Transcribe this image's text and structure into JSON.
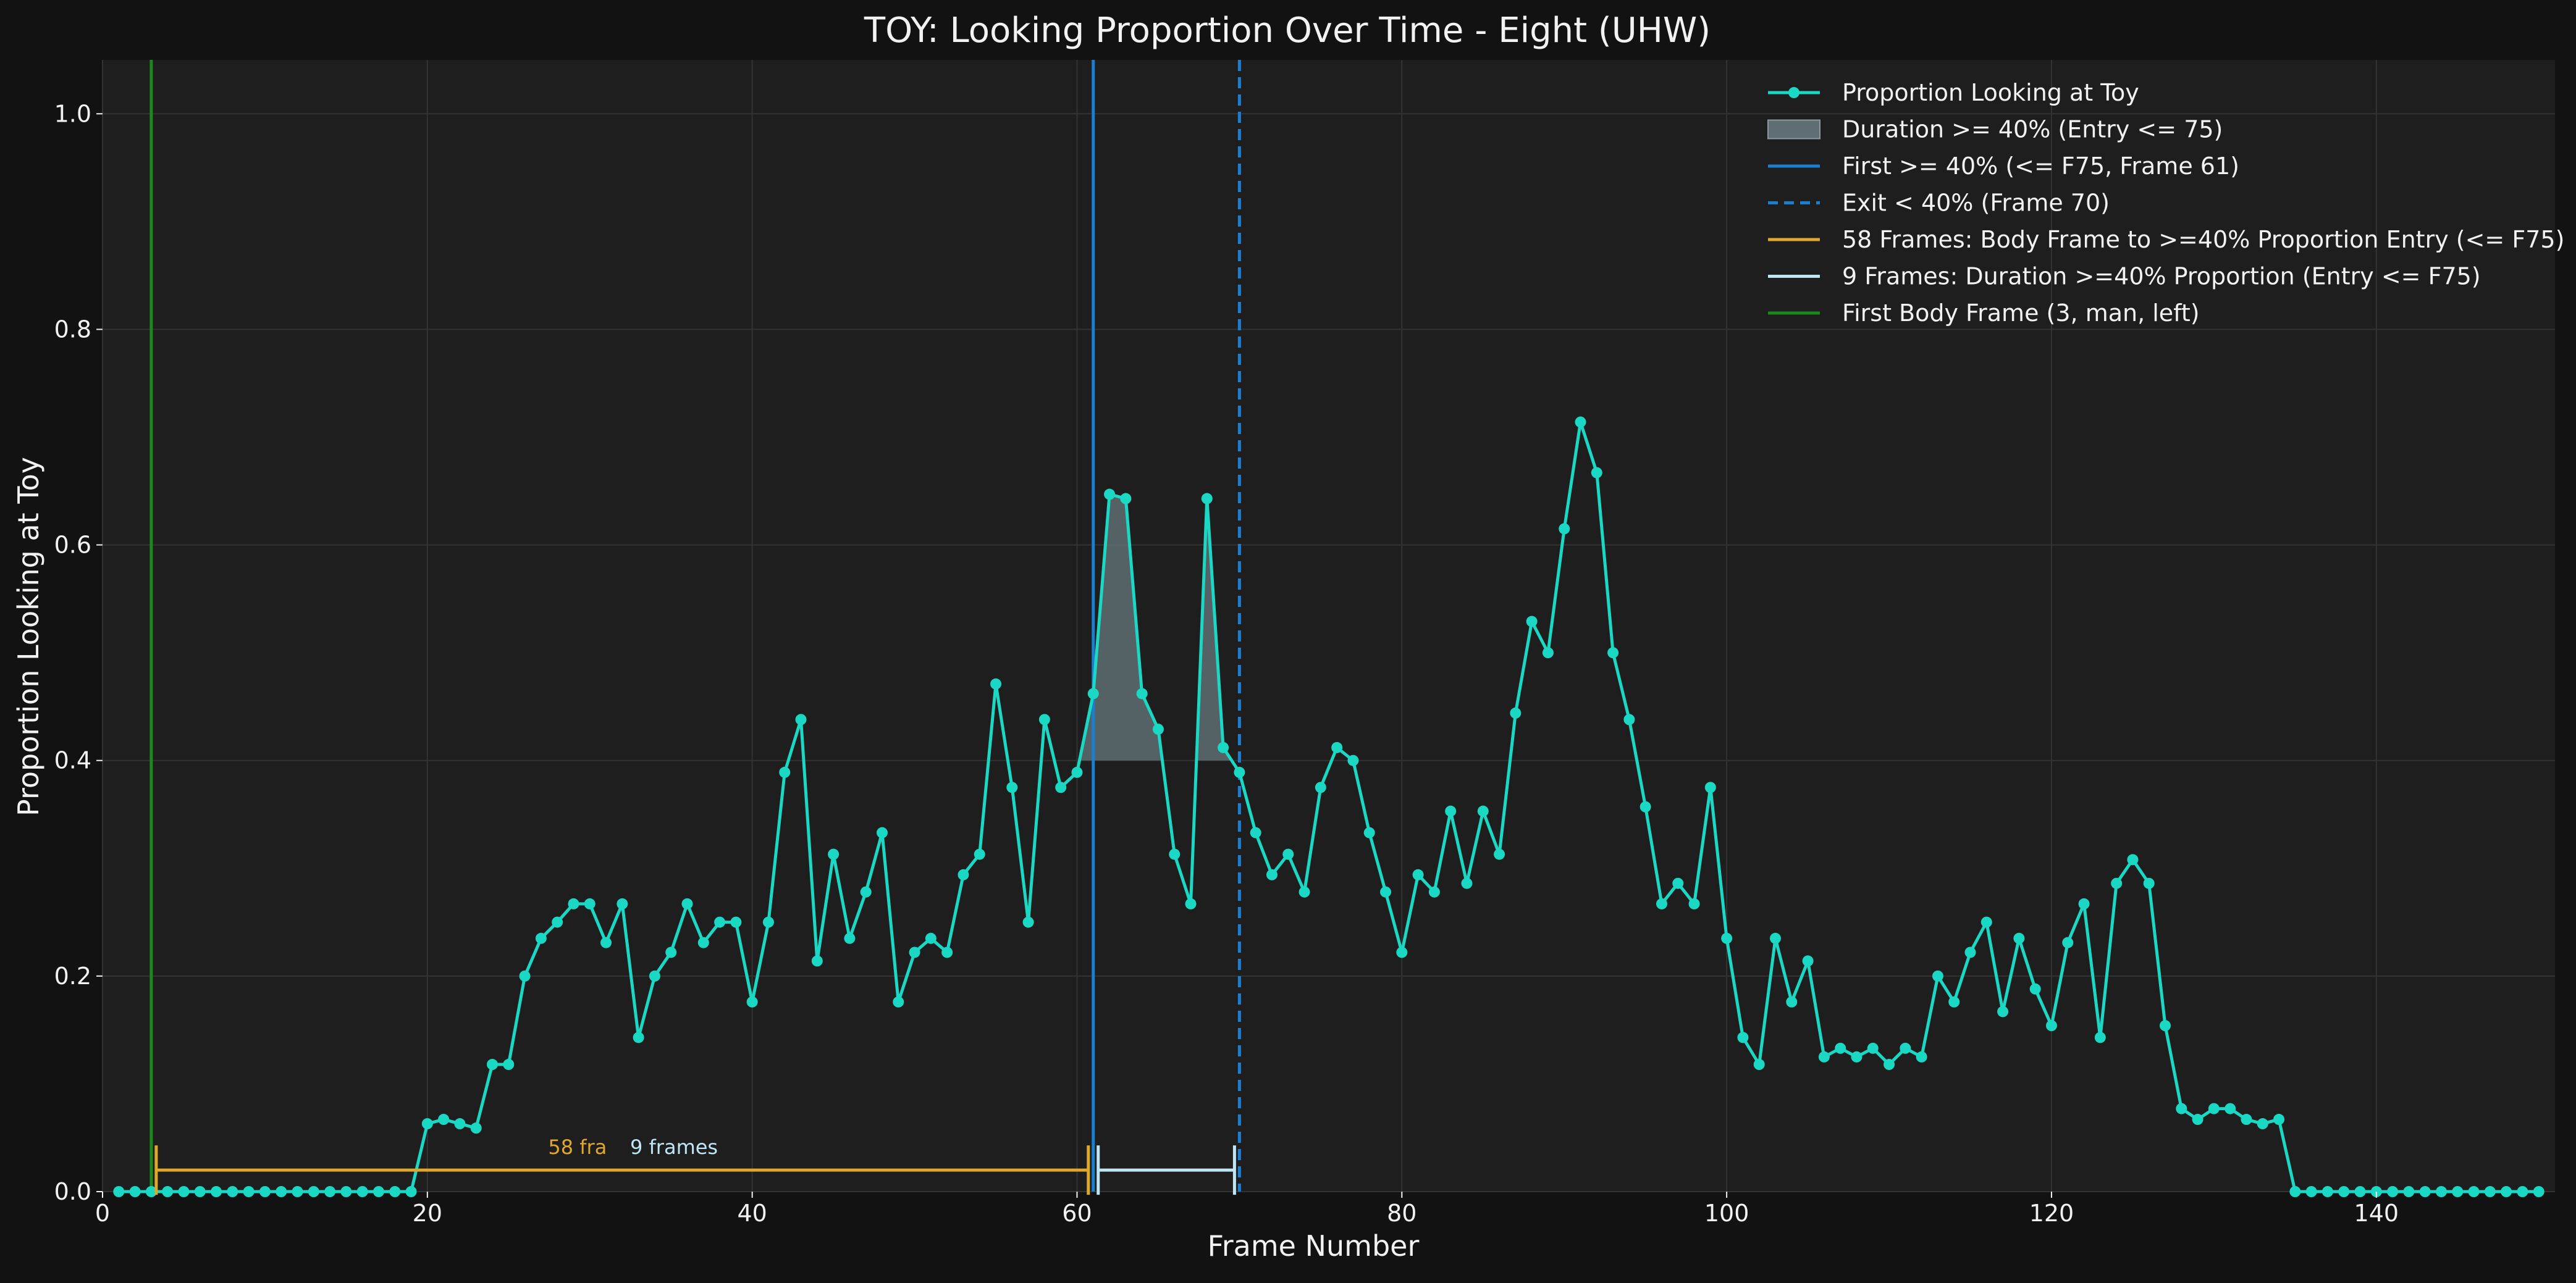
{
  "chart_data": {
    "type": "line",
    "title": "TOY: Looking Proportion Over Time - Eight (UHW)",
    "xlabel": "Frame Number",
    "ylabel": "Proportion Looking at Toy",
    "xlim": [
      0,
      151
    ],
    "ylim": [
      0,
      1.05
    ],
    "xticks": [
      0,
      20,
      40,
      60,
      80,
      100,
      120,
      140
    ],
    "yticks": [
      0.0,
      0.2,
      0.4,
      0.6,
      0.8,
      1.0
    ],
    "xtick_labels": [
      "0",
      "20",
      "40",
      "60",
      "80",
      "100",
      "120",
      "140"
    ],
    "ytick_labels": [
      "0.0",
      "0.2",
      "0.4",
      "0.6",
      "0.8",
      "1.0"
    ],
    "grid": true,
    "legend_position": "top-right",
    "threshold": 0.4,
    "series": [
      {
        "name": "Proportion Looking at Toy",
        "color": "#1ad8c4",
        "x": [
          1,
          2,
          3,
          4,
          5,
          6,
          7,
          8,
          9,
          10,
          11,
          12,
          13,
          14,
          15,
          16,
          17,
          18,
          19,
          20,
          21,
          22,
          23,
          24,
          25,
          26,
          27,
          28,
          29,
          30,
          31,
          32,
          33,
          34,
          35,
          36,
          37,
          38,
          39,
          40,
          41,
          42,
          43,
          44,
          45,
          46,
          47,
          48,
          49,
          50,
          51,
          52,
          53,
          54,
          55,
          56,
          57,
          58,
          59,
          60,
          61,
          62,
          63,
          64,
          65,
          66,
          67,
          68,
          69,
          70,
          71,
          72,
          73,
          74,
          75,
          76,
          77,
          78,
          79,
          80,
          81,
          82,
          83,
          84,
          85,
          86,
          87,
          88,
          89,
          90,
          91,
          92,
          93,
          94,
          95,
          96,
          97,
          98,
          99,
          100,
          101,
          102,
          103,
          104,
          105,
          106,
          107,
          108,
          109,
          110,
          111,
          112,
          113,
          114,
          115,
          116,
          117,
          118,
          119,
          120,
          121,
          122,
          123,
          124,
          125,
          126,
          127,
          128,
          129,
          130,
          131,
          132,
          133,
          134,
          135,
          136,
          137,
          138,
          139,
          140,
          141,
          142,
          143,
          144,
          145,
          146,
          147,
          148,
          149,
          150
        ],
        "y": [
          0,
          0,
          0,
          0,
          0,
          0,
          0,
          0,
          0,
          0,
          0,
          0,
          0,
          0,
          0,
          0,
          0,
          0,
          0,
          0.063,
          0.067,
          0.063,
          0.059,
          0.118,
          0.118,
          0.2,
          0.235,
          0.25,
          0.267,
          0.267,
          0.231,
          0.267,
          0.143,
          0.2,
          0.222,
          0.267,
          0.231,
          0.25,
          0.25,
          0.176,
          0.25,
          0.389,
          0.438,
          0.214,
          0.313,
          0.235,
          0.278,
          0.333,
          0.176,
          0.222,
          0.235,
          0.222,
          0.294,
          0.313,
          0.471,
          0.375,
          0.25,
          0.438,
          0.375,
          0.389,
          0.462,
          0.647,
          0.643,
          0.462,
          0.429,
          0.313,
          0.267,
          0.643,
          0.412,
          0.389,
          0.333,
          0.294,
          0.313,
          0.278,
          0.375,
          0.412,
          0.4,
          0.333,
          0.278,
          0.222,
          0.294,
          0.278,
          0.353,
          0.286,
          0.353,
          0.313,
          0.444,
          0.529,
          0.5,
          0.615,
          0.714,
          0.667,
          0.5,
          0.438,
          0.357,
          0.267,
          0.286,
          0.267,
          0.375,
          0.235,
          0.143,
          0.118,
          0.235,
          0.176,
          0.214,
          0.125,
          0.133,
          0.125,
          0.133,
          0.118,
          0.133,
          0.125,
          0.2,
          0.176,
          0.222,
          0.25,
          0.167,
          0.235,
          0.188,
          0.154,
          0.231,
          0.267,
          0.143,
          0.286,
          0.308,
          0.286,
          0.154,
          0.077,
          0.067,
          0.077,
          0.077,
          0.067,
          0.063,
          0.067,
          0,
          0,
          0,
          0,
          0,
          0,
          0,
          0,
          0,
          0,
          0,
          0,
          0,
          0,
          0,
          0
        ]
      }
    ],
    "shaded_region": {
      "label": "Duration >= 40% (Entry <= 75)",
      "x_from": 60,
      "x_to": 70,
      "y_base": 0.4
    },
    "vertical_lines": [
      {
        "label": "First >= 40% (<= F75, Frame 61)",
        "x": 61,
        "style": "solid",
        "color": "#1a7fd0"
      },
      {
        "label": "Exit < 40% (Frame 70)",
        "x": 70,
        "style": "dashed",
        "color": "#1a7fd0"
      },
      {
        "label": "First Body Frame (3, man, left)",
        "x": 3,
        "style": "solid",
        "color": "#1b8a1b"
      }
    ],
    "spans": [
      {
        "label": "58 Frames: Body Frame to >=40% Proportion Entry (<= F75)",
        "annotation": "58 fra",
        "x_from": 3,
        "x_to": 61,
        "y": 0.02,
        "color": "#e0a82a"
      },
      {
        "label": "9 Frames: Duration >=40% Proportion (Entry <= F75)",
        "annotation": "9 frames",
        "x_from": 61,
        "x_to": 70,
        "y": 0.02,
        "color": "#bfe6f5"
      }
    ],
    "legend": [
      {
        "label": "Proportion Looking at Toy",
        "kind": "line-marker",
        "color": "#1ad8c4"
      },
      {
        "label": "Duration >= 40% (Entry <= 75)",
        "kind": "patch",
        "color": "#5e6e72"
      },
      {
        "label": "First >= 40% (<= F75, Frame 61)",
        "kind": "line",
        "color": "#1a7fd0"
      },
      {
        "label": "Exit < 40% (Frame 70)",
        "kind": "dashed",
        "color": "#1a7fd0"
      },
      {
        "label": "58 Frames: Body Frame to >=40% Proportion Entry (<= F75)",
        "kind": "line",
        "color": "#e0a82a"
      },
      {
        "label": "9 Frames: Duration >=40% Proportion (Entry <= F75)",
        "kind": "line",
        "color": "#bfe6f5"
      },
      {
        "label": "First Body Frame (3, man, left)",
        "kind": "line",
        "color": "#1b8a1b"
      }
    ]
  }
}
